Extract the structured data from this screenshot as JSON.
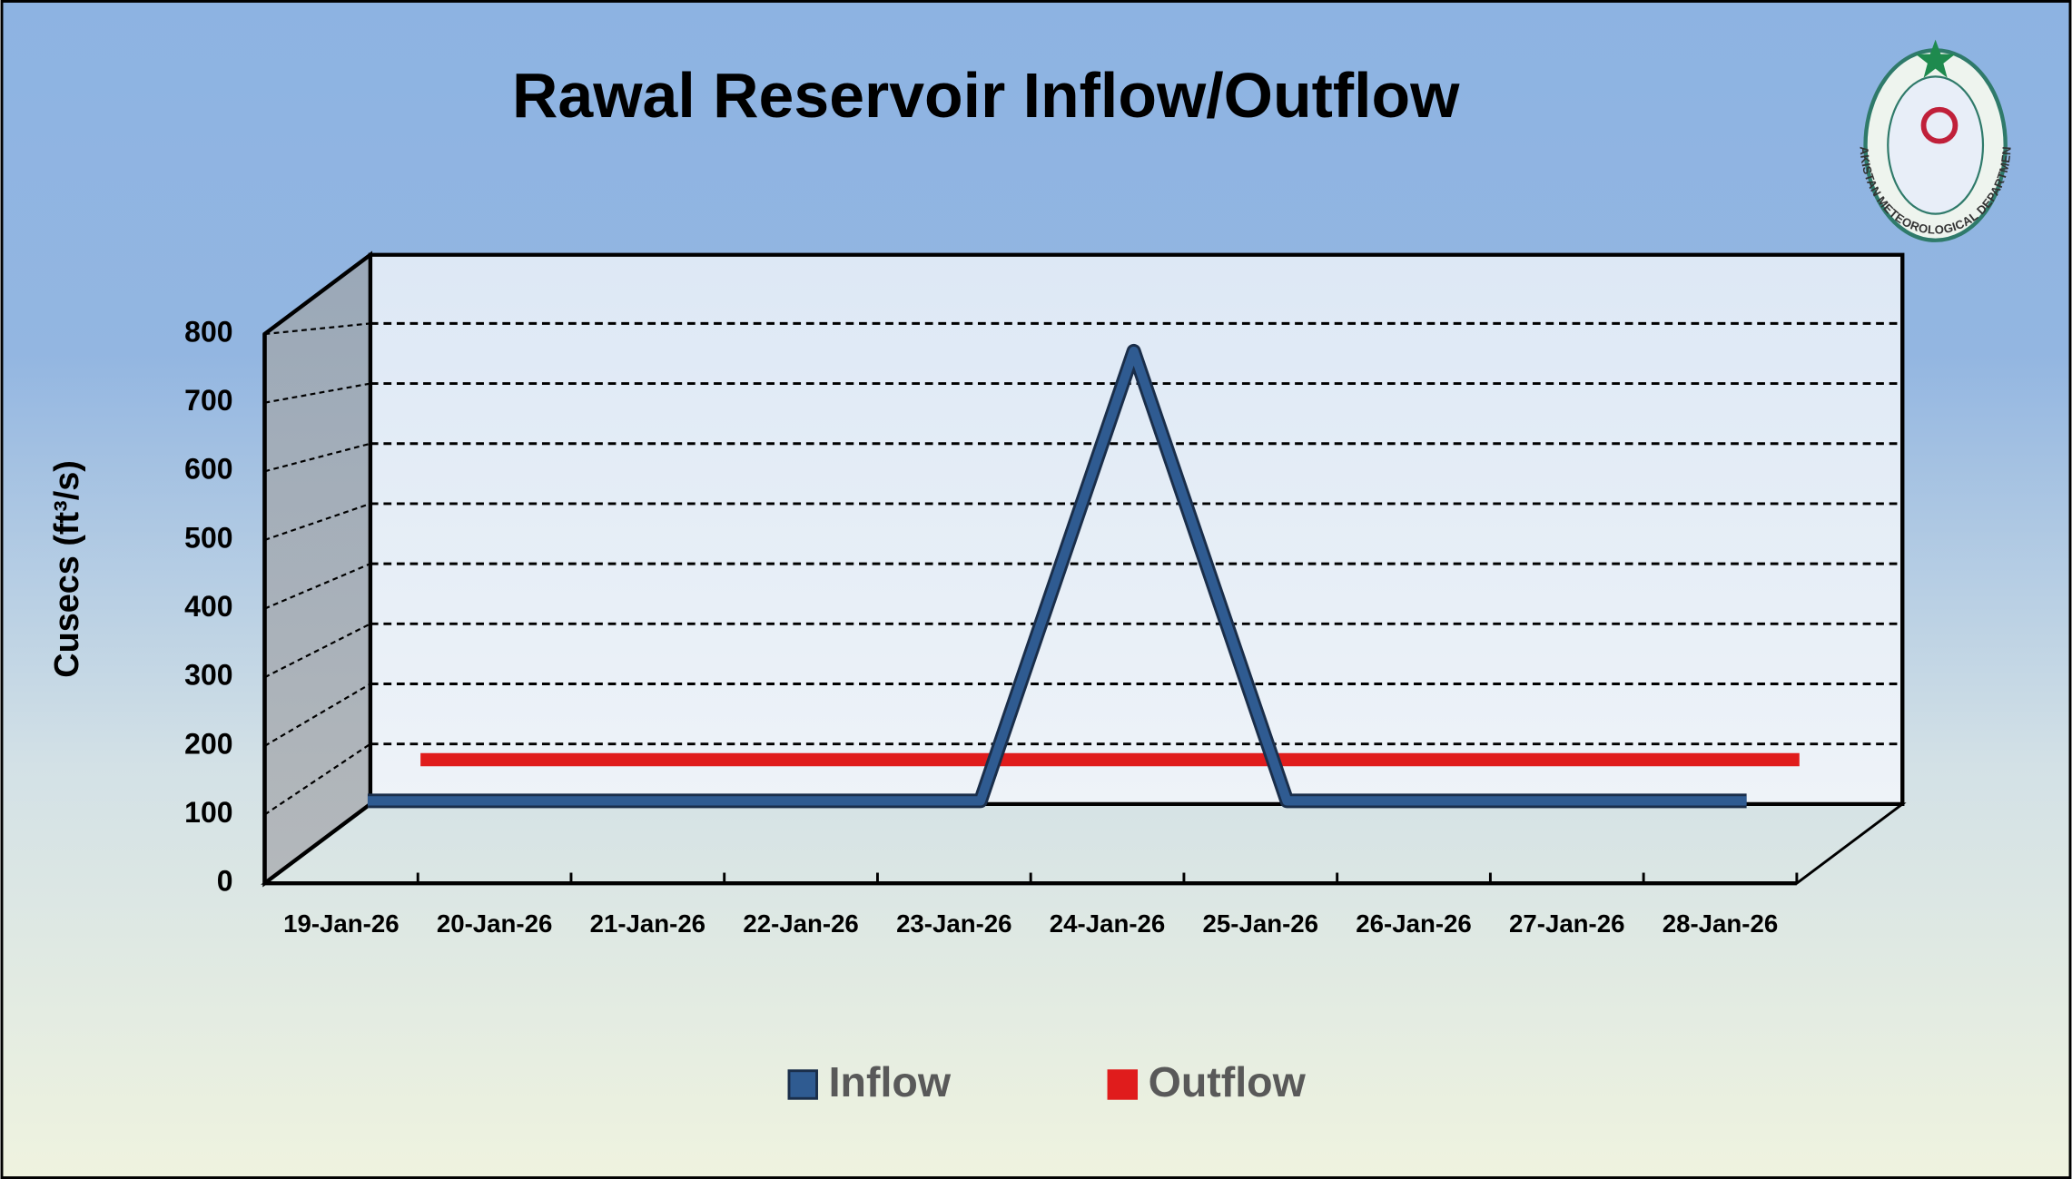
{
  "chart_data": {
    "type": "line",
    "title": "Rawal Reservoir Inflow/Outflow",
    "y_label": "Cusecs (ft³/s)",
    "logo_text": "PAKISTAN METEOROLOGICAL DEPARTMENT",
    "categories": [
      "19-Jan-26",
      "20-Jan-26",
      "21-Jan-26",
      "22-Jan-26",
      "23-Jan-26",
      "24-Jan-26",
      "25-Jan-26",
      "26-Jan-26",
      "27-Jan-26",
      "28-Jan-26"
    ],
    "series": [
      {
        "name": "Inflow",
        "color": "#2f5b91",
        "values": [
          120,
          120,
          120,
          120,
          120,
          775,
          120,
          120,
          120,
          120
        ]
      },
      {
        "name": "Outflow",
        "color": "#e01c1c",
        "values": [
          180,
          180,
          180,
          180,
          180,
          180,
          180,
          180,
          180,
          180
        ]
      }
    ],
    "ylim": [
      0,
      800
    ],
    "yticks": [
      0,
      100,
      200,
      300,
      400,
      500,
      600,
      700,
      800
    ],
    "grid": true,
    "legend": "bottom"
  }
}
